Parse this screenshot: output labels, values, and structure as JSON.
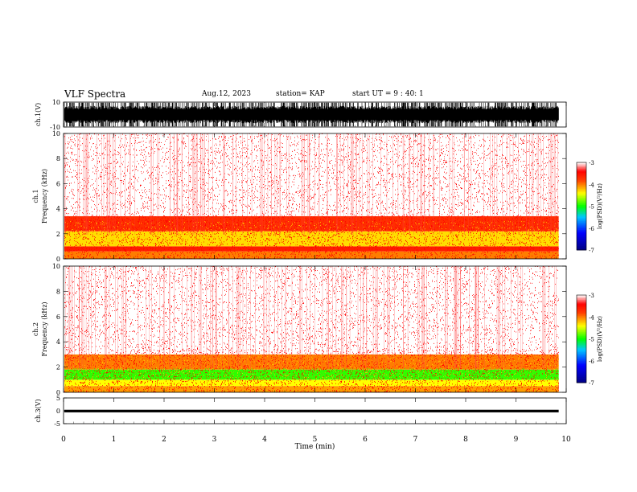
{
  "header": {
    "title": "VLF Spectra",
    "date": "Aug.12, 2023",
    "station": "station= KAP",
    "start": "start  UT =  9 : 40: 1"
  },
  "chart_data": [
    {
      "type": "line",
      "name": "ch1-waveform",
      "ylabel": "ch.1(V)",
      "ylim": [
        -10,
        10
      ],
      "yticks": [
        "10",
        "-10"
      ],
      "xlim": [
        0,
        10
      ],
      "data_end_min": 9.85,
      "envelope": {
        "typical_min": -7,
        "typical_max": 7,
        "saturation": true
      }
    },
    {
      "type": "heatmap",
      "name": "ch1-spectrogram",
      "ylabel": [
        "ch.1",
        "Frequency (kHz)"
      ],
      "ylim": [
        0,
        10
      ],
      "yticks": [
        "0",
        "2",
        "4",
        "6",
        "8",
        "10"
      ],
      "xlim": [
        0,
        10
      ],
      "data_end_min": 9.85,
      "bands_khz": [
        {
          "from": 0.0,
          "to": 0.6,
          "level": -4.0
        },
        {
          "from": 0.6,
          "to": 1.0,
          "level": -3.6
        },
        {
          "from": 1.0,
          "to": 2.2,
          "level": -4.3
        },
        {
          "from": 2.2,
          "to": 3.4,
          "level": -3.7
        },
        {
          "from": 3.4,
          "to": 10.0,
          "level": -3.0
        }
      ],
      "colorbar": {
        "label": "log(PSD)(V²/Hz)",
        "range": [
          -7,
          -3
        ],
        "ticks": [
          "-3",
          "-4",
          "-5",
          "-6",
          "-7"
        ]
      }
    },
    {
      "type": "heatmap",
      "name": "ch2-spectrogram",
      "ylabel": [
        "ch.2",
        "Frequency (kHz)"
      ],
      "ylim": [
        0,
        10
      ],
      "yticks": [
        "0",
        "2",
        "4",
        "6",
        "8",
        "10"
      ],
      "xlim": [
        0,
        10
      ],
      "data_end_min": 9.85,
      "bands_khz": [
        {
          "from": 0.0,
          "to": 0.5,
          "level": -4.1
        },
        {
          "from": 0.5,
          "to": 1.0,
          "level": -4.4
        },
        {
          "from": 1.0,
          "to": 1.8,
          "level": -4.9
        },
        {
          "from": 1.8,
          "to": 3.0,
          "level": -4.0
        },
        {
          "from": 3.0,
          "to": 10.0,
          "level": -3.0
        }
      ],
      "colorbar": {
        "label": "log(PSD)(V²/Hz)",
        "range": [
          -7,
          -3
        ],
        "ticks": [
          "-3",
          "-4",
          "-5",
          "-6",
          "-7"
        ]
      }
    },
    {
      "type": "line",
      "name": "ch3-waveform",
      "ylabel": "ch.3(V)",
      "ylim": [
        -5,
        5
      ],
      "yticks": [
        "5",
        "0",
        "-5"
      ],
      "xlim": [
        0,
        10
      ],
      "data_end_min": 9.85,
      "envelope": {
        "typical_min": -0.6,
        "typical_max": 0.4
      }
    }
  ],
  "xaxis": {
    "label": "Time (min)",
    "ticks": [
      "0",
      "1",
      "2",
      "3",
      "4",
      "5",
      "6",
      "7",
      "8",
      "9",
      "10"
    ]
  }
}
